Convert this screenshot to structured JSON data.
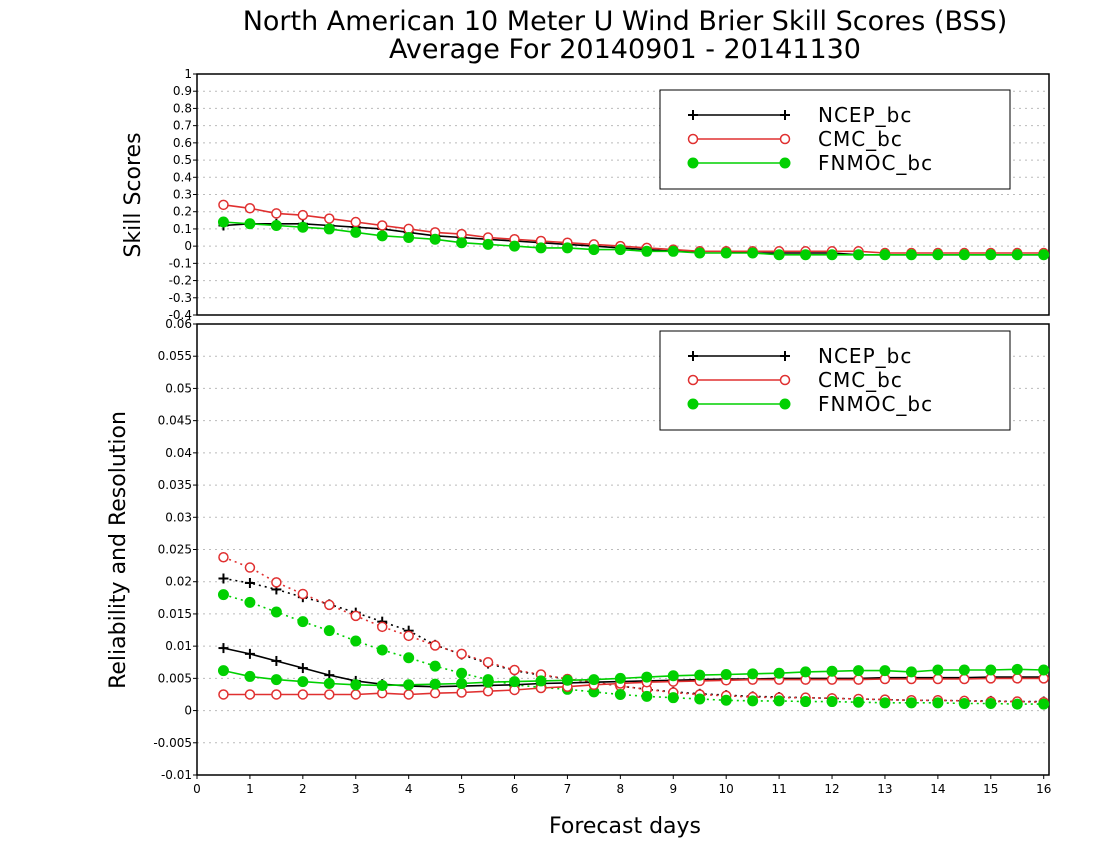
{
  "title_line1": "North American 10 Meter U Wind Brier Skill Scores (BSS)",
  "title_line2": "Average For 20140901 - 20141130",
  "colors": {
    "NCEP_bc": "#000000",
    "CMC_bc": "#e03030",
    "FNMOC_bc": "#00d000",
    "grid": "#bbbbbb"
  },
  "chart_data": [
    {
      "type": "line",
      "ylabel": "Skill Scores",
      "ylim": [
        -0.4,
        1
      ],
      "yticks": [
        "-0.4",
        "-0.3",
        "-0.2",
        "-0.1",
        "0",
        "0.1",
        "0.2",
        "0.3",
        "0.4",
        "0.5",
        "0.6",
        "0.7",
        "0.8",
        "0.9",
        "1"
      ],
      "xlim": [
        0,
        16.1
      ],
      "grid": true,
      "legend_position": "top-right",
      "x": [
        0.5,
        1,
        1.5,
        2,
        2.5,
        3,
        3.5,
        4,
        4.5,
        5,
        5.5,
        6,
        6.5,
        7,
        7.5,
        8,
        8.5,
        9,
        9.5,
        10,
        10.5,
        11,
        11.5,
        12,
        12.5,
        13,
        13.5,
        14,
        14.5,
        15,
        15.5,
        16
      ],
      "series": [
        {
          "name": "NCEP_bc",
          "marker": "plus",
          "line": "solid",
          "values": [
            0.12,
            0.13,
            0.13,
            0.13,
            0.12,
            0.11,
            0.1,
            0.08,
            0.06,
            0.05,
            0.04,
            0.03,
            0.02,
            0.01,
            0.0,
            -0.01,
            -0.02,
            -0.03,
            -0.03,
            -0.03,
            -0.04,
            -0.04,
            -0.04,
            -0.04,
            -0.05,
            -0.05,
            -0.05,
            -0.05,
            -0.05,
            -0.05,
            -0.05,
            -0.05
          ]
        },
        {
          "name": "CMC_bc",
          "marker": "circle-open",
          "line": "solid",
          "values": [
            0.24,
            0.22,
            0.19,
            0.18,
            0.16,
            0.14,
            0.12,
            0.1,
            0.08,
            0.07,
            0.05,
            0.04,
            0.03,
            0.02,
            0.01,
            0.0,
            -0.01,
            -0.02,
            -0.03,
            -0.03,
            -0.03,
            -0.03,
            -0.03,
            -0.03,
            -0.03,
            -0.04,
            -0.04,
            -0.04,
            -0.04,
            -0.04,
            -0.04,
            -0.04
          ]
        },
        {
          "name": "FNMOC_bc",
          "marker": "circle-filled",
          "line": "solid",
          "values": [
            0.14,
            0.13,
            0.12,
            0.11,
            0.1,
            0.08,
            0.06,
            0.05,
            0.04,
            0.02,
            0.01,
            0.0,
            -0.01,
            -0.01,
            -0.02,
            -0.02,
            -0.03,
            -0.03,
            -0.04,
            -0.04,
            -0.04,
            -0.05,
            -0.05,
            -0.05,
            -0.05,
            -0.05,
            -0.05,
            -0.05,
            -0.05,
            -0.05,
            -0.05,
            -0.05
          ]
        }
      ],
      "legend": [
        "NCEP_bc",
        "CMC_bc",
        "FNMOC_bc"
      ]
    },
    {
      "type": "line",
      "ylabel": "Reliability and Resolution",
      "xlabel": "Forecast days",
      "ylim": [
        -0.01,
        0.06
      ],
      "yticks": [
        "-0.01",
        "-0.005",
        "0",
        "0.005",
        "0.01",
        "0.015",
        "0.02",
        "0.025",
        "0.03",
        "0.035",
        "0.04",
        "0.045",
        "0.05",
        "0.055",
        "0.06"
      ],
      "xlim": [
        0,
        16.1
      ],
      "xticks": [
        "0",
        "1",
        "2",
        "3",
        "4",
        "5",
        "6",
        "7",
        "8",
        "9",
        "10",
        "11",
        "12",
        "13",
        "14",
        "15",
        "16"
      ],
      "grid": true,
      "legend_position": "top-right",
      "x": [
        0.5,
        1,
        1.5,
        2,
        2.5,
        3,
        3.5,
        4,
        4.5,
        5,
        5.5,
        6,
        6.5,
        7,
        7.5,
        8,
        8.5,
        9,
        9.5,
        10,
        10.5,
        11,
        11.5,
        12,
        12.5,
        13,
        13.5,
        14,
        14.5,
        15,
        15.5,
        16
      ],
      "series": [
        {
          "name": "NCEP_bc reliability",
          "marker": "plus",
          "line": "dotted",
          "values": [
            0.0205,
            0.0198,
            0.0188,
            0.0176,
            0.0165,
            0.0152,
            0.0138,
            0.0124,
            0.0102,
            0.0087,
            0.0073,
            0.0062,
            0.0055,
            0.0049,
            0.0044,
            0.0038,
            0.0033,
            0.0029,
            0.0026,
            0.0024,
            0.0022,
            0.0021,
            0.002,
            0.0019,
            0.0018,
            0.0017,
            0.0016,
            0.0016,
            0.0015,
            0.0015,
            0.0014,
            0.0014
          ]
        },
        {
          "name": "CMC_bc reliability",
          "marker": "circle-open",
          "line": "dotted",
          "values": [
            0.0238,
            0.0222,
            0.0199,
            0.0181,
            0.0164,
            0.0147,
            0.013,
            0.0116,
            0.0101,
            0.0088,
            0.0075,
            0.0063,
            0.0056,
            0.0049,
            0.0044,
            0.0038,
            0.0033,
            0.0028,
            0.0025,
            0.0023,
            0.0021,
            0.002,
            0.002,
            0.0019,
            0.0018,
            0.0017,
            0.0016,
            0.0016,
            0.0015,
            0.0014,
            0.0014,
            0.0013
          ]
        },
        {
          "name": "FNMOC_bc reliability",
          "marker": "circle-filled",
          "line": "dotted",
          "values": [
            0.018,
            0.0168,
            0.0153,
            0.0138,
            0.0124,
            0.0108,
            0.0094,
            0.0082,
            0.0069,
            0.0058,
            0.0048,
            0.004,
            0.0036,
            0.0033,
            0.0029,
            0.0025,
            0.0022,
            0.002,
            0.0018,
            0.0016,
            0.0015,
            0.0015,
            0.0014,
            0.0014,
            0.0013,
            0.0012,
            0.0012,
            0.0012,
            0.0011,
            0.0011,
            0.001,
            0.001
          ]
        },
        {
          "name": "NCEP_bc resolution",
          "marker": "plus",
          "line": "solid",
          "values": [
            0.0097,
            0.0088,
            0.0077,
            0.0066,
            0.0055,
            0.0046,
            0.0041,
            0.0038,
            0.0037,
            0.0038,
            0.0039,
            0.004,
            0.0042,
            0.0043,
            0.0044,
            0.0045,
            0.0046,
            0.0047,
            0.0048,
            0.0049,
            0.0049,
            0.005,
            0.005,
            0.005,
            0.005,
            0.0051,
            0.0051,
            0.0051,
            0.0051,
            0.0052,
            0.0052,
            0.0052
          ]
        },
        {
          "name": "CMC_bc resolution",
          "marker": "circle-open",
          "line": "solid",
          "values": [
            0.0025,
            0.0025,
            0.0025,
            0.0025,
            0.0025,
            0.0025,
            0.0027,
            0.0025,
            0.0027,
            0.0028,
            0.003,
            0.0032,
            0.0035,
            0.0037,
            0.004,
            0.0042,
            0.0044,
            0.0045,
            0.0046,
            0.0047,
            0.0048,
            0.0048,
            0.0048,
            0.0048,
            0.0048,
            0.0049,
            0.0049,
            0.0049,
            0.0049,
            0.005,
            0.005,
            0.005
          ]
        },
        {
          "name": "FNMOC_bc resolution",
          "marker": "circle-filled",
          "line": "solid",
          "values": [
            0.0062,
            0.0053,
            0.0048,
            0.0045,
            0.0042,
            0.004,
            0.0039,
            0.004,
            0.0041,
            0.0042,
            0.0044,
            0.0045,
            0.0046,
            0.0047,
            0.0048,
            0.005,
            0.0052,
            0.0054,
            0.0055,
            0.0056,
            0.0057,
            0.0058,
            0.006,
            0.0061,
            0.0062,
            0.0062,
            0.006,
            0.0063,
            0.0063,
            0.0063,
            0.0064,
            0.0063
          ]
        }
      ],
      "legend": [
        "NCEP_bc",
        "CMC_bc",
        "FNMOC_bc"
      ]
    }
  ]
}
